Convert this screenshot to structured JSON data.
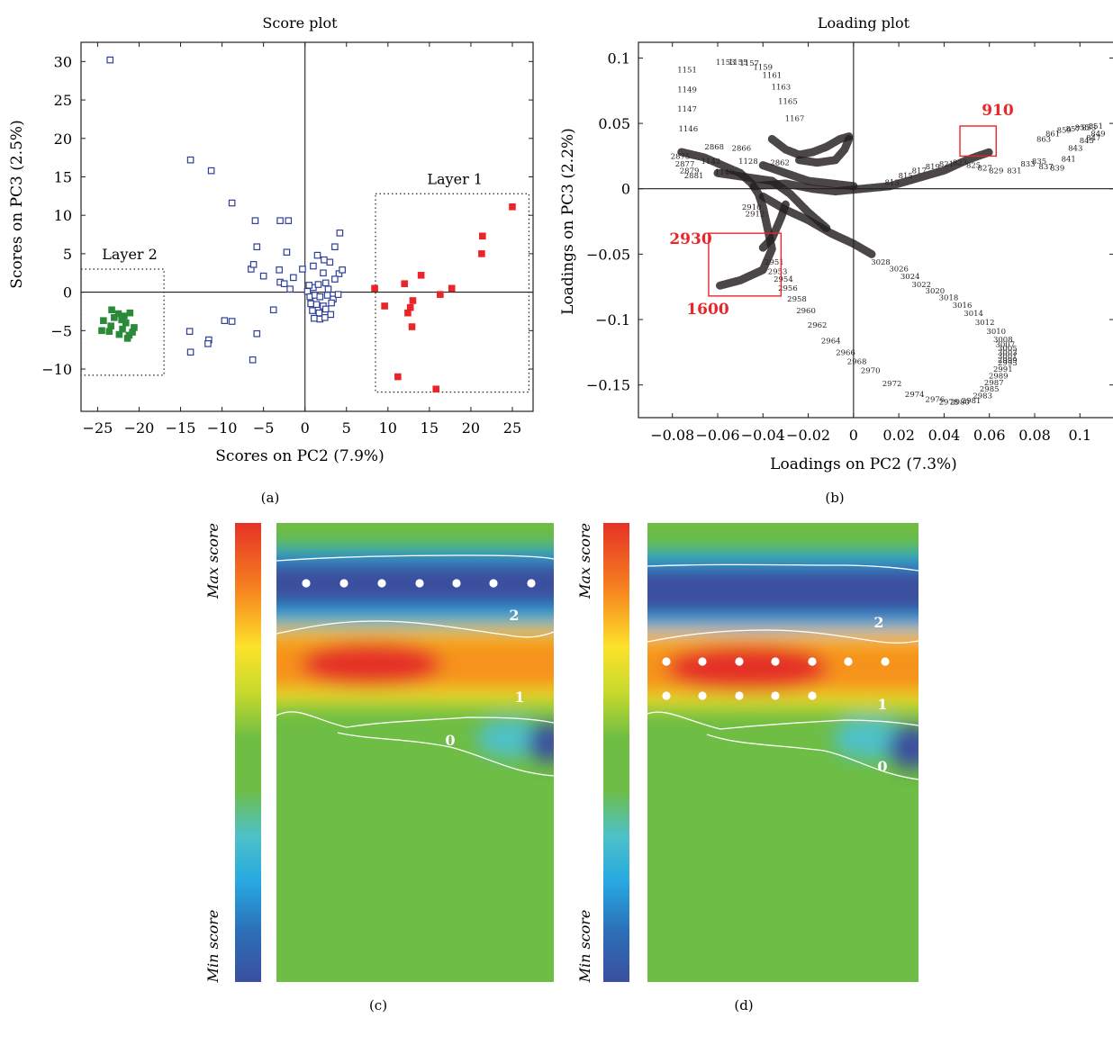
{
  "figure": {
    "panel_labels": [
      "(a)",
      "(b)",
      "(c)",
      "(d)"
    ]
  },
  "score_plot": {
    "title": "Score plot",
    "xlabel": "Scores on PC2 (7.9%)",
    "ylabel": "Scores on PC3 (2.5%)",
    "xlim": [
      -27,
      27.5
    ],
    "ylim": [
      -15.5,
      32.5
    ],
    "xticks": [
      -25,
      -20,
      -15,
      -10,
      -5,
      0,
      5,
      10,
      15,
      20,
      25
    ],
    "yticks": [
      -10,
      -5,
      0,
      5,
      10,
      15,
      20,
      25,
      30
    ],
    "colors": {
      "other": "#2e3f9a",
      "layer1": "#e8262a",
      "layer2": "#2a8a3a"
    },
    "regions": [
      {
        "label": "Layer 1",
        "x": [
          8.5,
          27
        ],
        "y": [
          -13,
          12.8
        ]
      },
      {
        "label": "Layer 2",
        "x": [
          -27,
          -17
        ],
        "y": [
          -10.8,
          3
        ]
      }
    ]
  },
  "loading_plot": {
    "title": "Loading plot",
    "xlabel": "Loadings on PC2 (7.3%)",
    "ylabel": "Loadings on PC3 (2.2%)",
    "xlim": [
      -0.095,
      0.115
    ],
    "ylim": [
      -0.175,
      0.112
    ],
    "xticks": [
      -0.08,
      -0.06,
      -0.04,
      -0.02,
      0,
      0.02,
      0.04,
      0.06,
      0.08,
      0.1
    ],
    "xtick_labels": [
      "−0.08",
      "−0.06",
      "−0.04",
      "−0.02",
      "0",
      "0.02",
      "0.04",
      "0.06",
      "0.08",
      "0.1"
    ],
    "yticks": [
      -0.15,
      -0.1,
      -0.05,
      0,
      0.05,
      0.1
    ],
    "ytick_labels": [
      "−0.15",
      "−0.1",
      "−0.05",
      "0",
      "0.05",
      "0.1"
    ],
    "highlight_color": "#e8262a",
    "highlights": [
      {
        "label": "910",
        "x": [
          0.047,
          0.063
        ],
        "y": [
          0.025,
          0.048
        ]
      },
      {
        "label": "2930",
        "x": [
          -0.064,
          -0.032
        ],
        "y": [
          -0.082,
          -0.034
        ]
      },
      {
        "label": "1600",
        "x": null,
        "y": null
      }
    ]
  },
  "heatmaps": [
    {
      "colorbar_max": "Max score",
      "colorbar_min": "Min score",
      "layer_labels": [
        "2",
        "1",
        "0"
      ]
    },
    {
      "colorbar_max": "Max score",
      "colorbar_min": "Min score",
      "layer_labels": [
        "2",
        "1",
        "0"
      ]
    }
  ],
  "chart_data": [
    {
      "type": "scatter",
      "title": "Score plot",
      "xlabel": "Scores on PC2 (7.9%)",
      "ylabel": "Scores on PC3 (2.5%)",
      "xlim": [
        -27,
        27.5
      ],
      "ylim": [
        -15.5,
        32.5
      ],
      "grid": false,
      "series": [
        {
          "name": "",
          "marker": "open-square",
          "color": "#2e3f9a",
          "points": [
            [
              -23.5,
              30.2
            ],
            [
              -13.8,
              17.2
            ],
            [
              -11.3,
              15.8
            ],
            [
              -8.8,
              11.6
            ],
            [
              -6.0,
              9.3
            ],
            [
              -3.0,
              9.3
            ],
            [
              -2.0,
              9.3
            ],
            [
              -5.8,
              5.9
            ],
            [
              -2.2,
              5.2
            ],
            [
              -6.5,
              3.0
            ],
            [
              -6.2,
              3.6
            ],
            [
              -5.0,
              2.1
            ],
            [
              -3.1,
              2.9
            ],
            [
              -3.0,
              1.3
            ],
            [
              -2.5,
              1.1
            ],
            [
              -1.4,
              1.9
            ],
            [
              -1.8,
              0.4
            ],
            [
              -0.3,
              3.0
            ],
            [
              -13.9,
              -5.1
            ],
            [
              -13.8,
              -7.8
            ],
            [
              -11.6,
              -6.2
            ],
            [
              -11.7,
              -6.7
            ],
            [
              -9.7,
              -3.7
            ],
            [
              -8.8,
              -3.8
            ],
            [
              -5.8,
              -5.4
            ],
            [
              -6.3,
              -8.8
            ],
            [
              -3.8,
              -2.3
            ],
            [
              1.5,
              4.8
            ],
            [
              2.3,
              4.2
            ],
            [
              3.6,
              5.9
            ],
            [
              4.2,
              7.7
            ],
            [
              2.2,
              2.5
            ],
            [
              4.1,
              2.4
            ],
            [
              1.0,
              3.4
            ],
            [
              0.3,
              0.1
            ],
            [
              1.0,
              0.6
            ],
            [
              2.5,
              1.2
            ],
            [
              3.6,
              1.7
            ],
            [
              4.5,
              2.9
            ],
            [
              3.0,
              3.9
            ],
            [
              0.6,
              -0.6
            ],
            [
              1.2,
              -0.4
            ],
            [
              1.8,
              -0.6
            ],
            [
              2.7,
              -0.4
            ],
            [
              3.4,
              -0.9
            ],
            [
              4.0,
              -0.3
            ],
            [
              0.7,
              -1.5
            ],
            [
              1.4,
              -1.6
            ],
            [
              2.2,
              -1.8
            ],
            [
              3.2,
              -1.4
            ],
            [
              0.9,
              -2.4
            ],
            [
              1.7,
              -2.7
            ],
            [
              2.5,
              -2.2
            ],
            [
              3.1,
              -2.9
            ],
            [
              1.1,
              -3.4
            ],
            [
              1.8,
              -3.5
            ],
            [
              2.4,
              -3.3
            ],
            [
              0.5,
              0.9
            ],
            [
              1.6,
              1.0
            ],
            [
              2.8,
              0.4
            ]
          ]
        },
        {
          "name": "Layer 1",
          "marker": "filled-square",
          "color": "#e8262a",
          "points": [
            [
              25.0,
              11.1
            ],
            [
              21.4,
              7.3
            ],
            [
              21.3,
              5.0
            ],
            [
              14.0,
              2.2
            ],
            [
              12.0,
              1.1
            ],
            [
              17.7,
              0.5
            ],
            [
              8.4,
              0.5
            ],
            [
              16.3,
              -0.3
            ],
            [
              13.0,
              -1.1
            ],
            [
              9.6,
              -1.8
            ],
            [
              12.7,
              -2.0
            ],
            [
              12.4,
              -2.7
            ],
            [
              12.9,
              -4.5
            ],
            [
              11.2,
              -11.0
            ],
            [
              15.8,
              -12.6
            ]
          ]
        },
        {
          "name": "Layer 2",
          "marker": "filled-square",
          "color": "#2a8a3a",
          "points": [
            [
              -23.3,
              -2.3
            ],
            [
              -22.5,
              -2.8
            ],
            [
              -21.8,
              -3.1
            ],
            [
              -21.1,
              -2.7
            ],
            [
              -23.0,
              -3.3
            ],
            [
              -22.1,
              -3.6
            ],
            [
              -21.6,
              -4.0
            ],
            [
              -24.3,
              -3.7
            ],
            [
              -23.4,
              -4.4
            ],
            [
              -20.6,
              -4.6
            ],
            [
              -24.5,
              -5.0
            ],
            [
              -23.6,
              -5.1
            ],
            [
              -22.4,
              -5.5
            ],
            [
              -21.2,
              -5.6
            ],
            [
              -20.8,
              -5.2
            ],
            [
              -21.4,
              -6.0
            ],
            [
              -22.0,
              -4.8
            ]
          ]
        }
      ]
    },
    {
      "type": "scatter",
      "title": "Loading plot",
      "xlabel": "Loadings on PC2 (7.3%)",
      "ylabel": "Loadings on PC3 (2.2%)",
      "xlim": [
        -0.095,
        0.115
      ],
      "ylim": [
        -0.175,
        0.112
      ],
      "grid": false,
      "series": [
        {
          "name": "",
          "marker": "wavenumber-label",
          "color": "#231f20",
          "points": [
            {
              "label": "1153",
              "x": -0.0565,
              "y": 0.097
            },
            {
              "label": "1155",
              "x": -0.051,
              "y": 0.097
            },
            {
              "label": "1157",
              "x": -0.046,
              "y": 0.096
            },
            {
              "label": "1159",
              "x": -0.04,
              "y": 0.093
            },
            {
              "label": "1161",
              "x": -0.036,
              "y": 0.087
            },
            {
              "label": "1163",
              "x": -0.032,
              "y": 0.078
            },
            {
              "label": "1165",
              "x": -0.029,
              "y": 0.067
            },
            {
              "label": "1167",
              "x": -0.026,
              "y": 0.054
            },
            {
              "label": "1151",
              "x": -0.0735,
              "y": 0.091
            },
            {
              "label": "1149",
              "x": -0.0735,
              "y": 0.076
            },
            {
              "label": "1147",
              "x": -0.0735,
              "y": 0.061
            },
            {
              "label": "1146",
              "x": -0.073,
              "y": 0.046
            },
            {
              "label": "2868",
              "x": -0.0615,
              "y": 0.032
            },
            {
              "label": "2866",
              "x": -0.0495,
              "y": 0.031
            },
            {
              "label": "1142",
              "x": -0.063,
              "y": 0.021
            },
            {
              "label": "1140",
              "x": -0.057,
              "y": 0.013
            },
            {
              "label": "1128",
              "x": -0.0465,
              "y": 0.021
            },
            {
              "label": "2862",
              "x": -0.0325,
              "y": 0.02
            },
            {
              "label": "2875",
              "x": -0.0765,
              "y": 0.025
            },
            {
              "label": "2877",
              "x": -0.0745,
              "y": 0.019
            },
            {
              "label": "2879",
              "x": -0.0725,
              "y": 0.014
            },
            {
              "label": "2881",
              "x": -0.0705,
              "y": 0.01
            },
            {
              "label": "2910",
              "x": -0.045,
              "y": -0.014
            },
            {
              "label": "2912",
              "x": -0.0435,
              "y": -0.019
            },
            {
              "label": "2951",
              "x": -0.035,
              "y": -0.056
            },
            {
              "label": "2953",
              "x": -0.0335,
              "y": -0.063
            },
            {
              "label": "2954",
              "x": -0.031,
              "y": -0.069
            },
            {
              "label": "2956",
              "x": -0.029,
              "y": -0.076
            },
            {
              "label": "2958",
              "x": -0.025,
              "y": -0.084
            },
            {
              "label": "2960",
              "x": -0.021,
              "y": -0.093
            },
            {
              "label": "2962",
              "x": -0.016,
              "y": -0.104
            },
            {
              "label": "2964",
              "x": -0.01,
              "y": -0.116
            },
            {
              "label": "2966",
              "x": -0.0035,
              "y": -0.125
            },
            {
              "label": "2968",
              "x": 0.0015,
              "y": -0.132
            },
            {
              "label": "2970",
              "x": 0.0075,
              "y": -0.139
            },
            {
              "label": "2972",
              "x": 0.017,
              "y": -0.149
            },
            {
              "label": "2974",
              "x": 0.027,
              "y": -0.157
            },
            {
              "label": "2976",
              "x": 0.036,
              "y": -0.161
            },
            {
              "label": "2978",
              "x": 0.042,
              "y": -0.163
            },
            {
              "label": "2980",
              "x": 0.047,
              "y": -0.163
            },
            {
              "label": "2981",
              "x": 0.052,
              "y": -0.162
            },
            {
              "label": "2983",
              "x": 0.057,
              "y": -0.158
            },
            {
              "label": "2985",
              "x": 0.06,
              "y": -0.153
            },
            {
              "label": "2987",
              "x": 0.062,
              "y": -0.148
            },
            {
              "label": "2989",
              "x": 0.064,
              "y": -0.143
            },
            {
              "label": "2991",
              "x": 0.066,
              "y": -0.138
            },
            {
              "label": "2993",
              "x": 0.068,
              "y": -0.133
            },
            {
              "label": "3028",
              "x": 0.012,
              "y": -0.056
            },
            {
              "label": "3026",
              "x": 0.02,
              "y": -0.061
            },
            {
              "label": "3024",
              "x": 0.025,
              "y": -0.067
            },
            {
              "label": "3022",
              "x": 0.03,
              "y": -0.073
            },
            {
              "label": "3020",
              "x": 0.036,
              "y": -0.078
            },
            {
              "label": "3018",
              "x": 0.042,
              "y": -0.083
            },
            {
              "label": "3016",
              "x": 0.048,
              "y": -0.089
            },
            {
              "label": "3014",
              "x": 0.053,
              "y": -0.095
            },
            {
              "label": "3012",
              "x": 0.058,
              "y": -0.102
            },
            {
              "label": "3010",
              "x": 0.063,
              "y": -0.109
            },
            {
              "label": "3008",
              "x": 0.066,
              "y": -0.115
            },
            {
              "label": "3007",
              "x": 0.067,
              "y": -0.119
            },
            {
              "label": "3005",
              "x": 0.068,
              "y": -0.122
            },
            {
              "label": "3003",
              "x": 0.068,
              "y": -0.125
            },
            {
              "label": "3001",
              "x": 0.068,
              "y": -0.128
            },
            {
              "label": "2999",
              "x": 0.068,
              "y": -0.131
            },
            {
              "label": "829",
              "x": 0.063,
              "y": 0.014
            },
            {
              "label": "831",
              "x": 0.071,
              "y": 0.014
            },
            {
              "label": "833",
              "x": 0.077,
              "y": 0.019
            },
            {
              "label": "835",
              "x": 0.082,
              "y": 0.021
            },
            {
              "label": "837",
              "x": 0.085,
              "y": 0.017
            },
            {
              "label": "839",
              "x": 0.09,
              "y": 0.016
            },
            {
              "label": "841",
              "x": 0.095,
              "y": 0.023
            },
            {
              "label": "843",
              "x": 0.098,
              "y": 0.031
            },
            {
              "label": "845",
              "x": 0.103,
              "y": 0.037
            },
            {
              "label": "847",
              "x": 0.106,
              "y": 0.039
            },
            {
              "label": "849",
              "x": 0.108,
              "y": 0.042
            },
            {
              "label": "851",
              "x": 0.107,
              "y": 0.048
            },
            {
              "label": "853",
              "x": 0.104,
              "y": 0.047
            },
            {
              "label": "855",
              "x": 0.101,
              "y": 0.047
            },
            {
              "label": "857",
              "x": 0.097,
              "y": 0.046
            },
            {
              "label": "859",
              "x": 0.093,
              "y": 0.045
            },
            {
              "label": "861",
              "x": 0.088,
              "y": 0.042
            },
            {
              "label": "863",
              "x": 0.084,
              "y": 0.038
            },
            {
              "label": "827",
              "x": 0.058,
              "y": 0.016
            },
            {
              "label": "825",
              "x": 0.053,
              "y": 0.018
            },
            {
              "label": "823",
              "x": 0.047,
              "y": 0.02
            },
            {
              "label": "821",
              "x": 0.041,
              "y": 0.019
            },
            {
              "label": "819",
              "x": 0.035,
              "y": 0.017
            },
            {
              "label": "817",
              "x": 0.029,
              "y": 0.014
            },
            {
              "label": "815",
              "x": 0.023,
              "y": 0.01
            },
            {
              "label": "813",
              "x": 0.017,
              "y": 0.005
            }
          ]
        }
      ]
    }
  ]
}
